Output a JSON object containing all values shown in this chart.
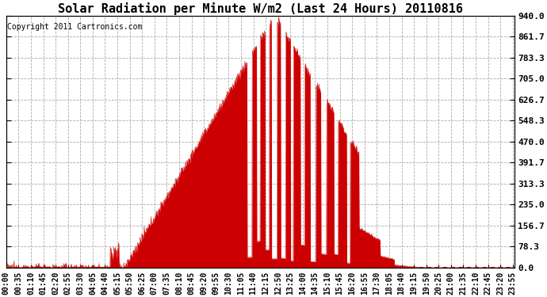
{
  "title": "Solar Radiation per Minute W/m2 (Last 24 Hours) 20110816",
  "copyright": "Copyright 2011 Cartronics.com",
  "y_ticks": [
    0.0,
    78.3,
    156.7,
    235.0,
    313.3,
    391.7,
    470.0,
    548.3,
    626.7,
    705.0,
    783.3,
    861.7,
    940.0
  ],
  "y_max": 940.0,
  "y_min": 0.0,
  "fill_color": "#CC0000",
  "line_color": "#CC0000",
  "dashed_line_color": "#CC0000",
  "grid_color": "#aaaaaa",
  "background_color": "#ffffff",
  "title_fontsize": 11,
  "copyright_fontsize": 7,
  "tick_fontsize": 7,
  "x_tick_step_min": 35
}
